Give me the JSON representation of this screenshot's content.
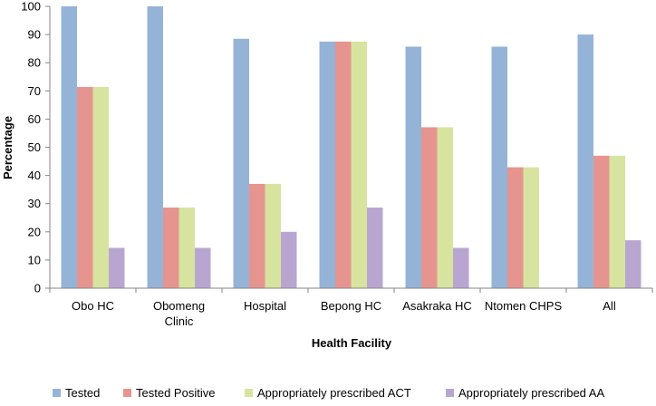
{
  "chart_data": {
    "type": "bar",
    "title": "",
    "xlabel": "Health Facility",
    "ylabel": "Percentage",
    "ylim": [
      0,
      100
    ],
    "yticks": [
      0,
      10,
      20,
      30,
      40,
      50,
      60,
      70,
      80,
      90,
      100
    ],
    "grid": false,
    "legend_position": "bottom",
    "categories": [
      [
        "Obo HC"
      ],
      [
        "Obomeng",
        "Clinic"
      ],
      [
        "Hospital"
      ],
      [
        "Bepong HC"
      ],
      [
        "Asakraka HC"
      ],
      [
        "Ntomen CHPS"
      ],
      [
        "All"
      ]
    ],
    "series": [
      {
        "name": "Tested",
        "color": "#95b3d7",
        "values": [
          100,
          100,
          88.5,
          87.5,
          85.7,
          85.7,
          90
        ]
      },
      {
        "name": "Tested Positive",
        "color": "#e6948f",
        "values": [
          71.4,
          28.6,
          37,
          87.5,
          57.1,
          42.9,
          47
        ]
      },
      {
        "name": "Appropriately prescribed ACT",
        "color": "#d7e4a0",
        "values": [
          71.4,
          28.6,
          37,
          87.5,
          57.1,
          42.9,
          47
        ]
      },
      {
        "name": "Appropriately prescribed AA",
        "color": "#b8a6d1",
        "values": [
          14.3,
          14.3,
          20,
          28.6,
          14.3,
          0,
          17
        ]
      }
    ]
  }
}
